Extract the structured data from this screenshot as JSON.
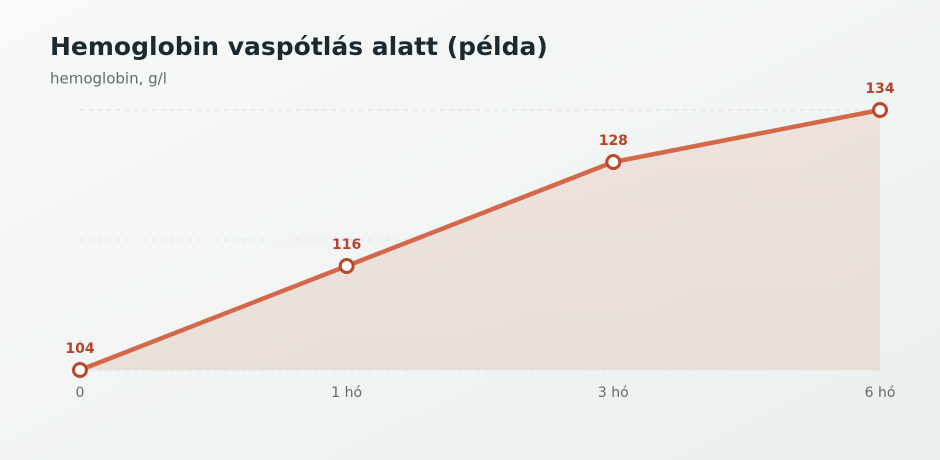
{
  "chart_data": {
    "type": "line",
    "title": "Hemoglobin vaspótlás alatt (példa)",
    "subtitle": "hemoglobin, g/l",
    "categories": [
      "0",
      "1 hó",
      "3 hó",
      "6 hó"
    ],
    "values": [
      104,
      116,
      128,
      134
    ],
    "color": "#d4694a",
    "ylim": [
      104,
      134
    ],
    "grid": true,
    "area": true
  }
}
